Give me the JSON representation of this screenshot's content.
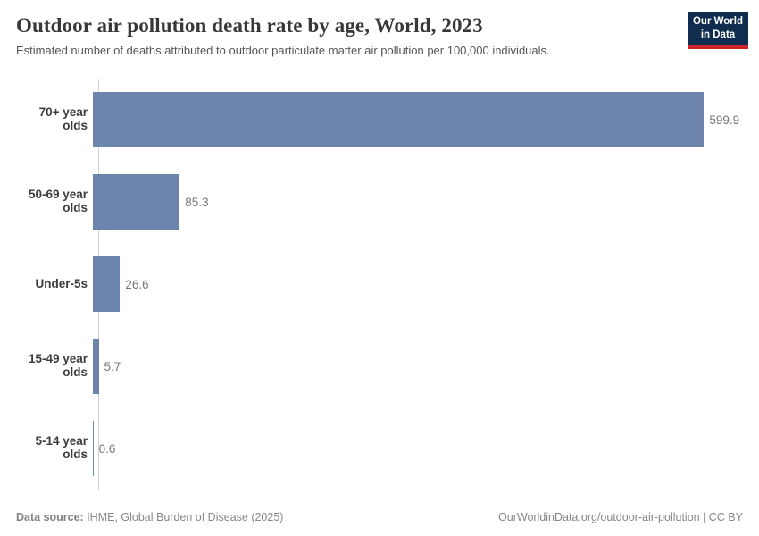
{
  "header": {
    "title": "Outdoor air pollution death rate by age, World, 2023",
    "subtitle": "Estimated number of deaths attributed to outdoor particulate matter air pollution per 100,000 individuals.",
    "logo": {
      "line1": "Our World",
      "line2": "in Data"
    }
  },
  "chart_data": {
    "type": "bar",
    "orientation": "horizontal",
    "title": "Outdoor air pollution death rate by age, World, 2023",
    "categories": [
      "70+ year olds",
      "50-69 year olds",
      "Under-5s",
      "15-49 year olds",
      "5-14 year olds"
    ],
    "values": [
      599.9,
      85.3,
      26.6,
      5.7,
      0.6
    ],
    "value_labels": [
      "599.9",
      "85.3",
      "26.6",
      "5.7",
      "0.6"
    ],
    "xlim": [
      0,
      599.9
    ],
    "grid": false,
    "legend": "none",
    "bar_color": "#6d85ac",
    "axis_line_color": "#ccd3dc"
  },
  "footer": {
    "source_label": "Data source:",
    "source_text": " IHME, Global Burden of Disease (2025)",
    "citation": "OurWorldinData.org/outdoor-air-pollution | CC BY"
  }
}
